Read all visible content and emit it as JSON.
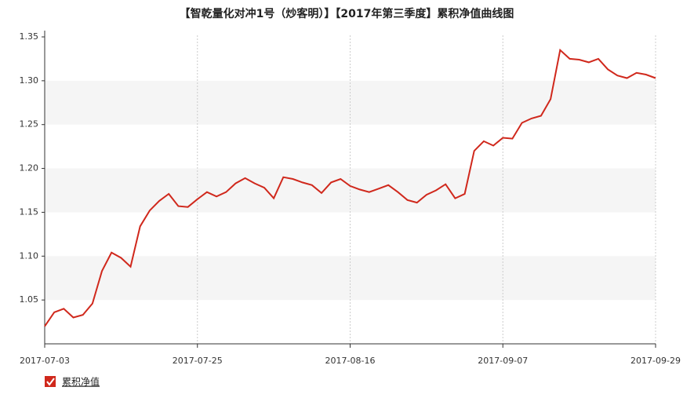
{
  "chart_data": {
    "type": "line",
    "title": "【智乾量化对冲1号（炒客明）】【2017年第三季度】累积净值曲线图",
    "categories": [
      "2017-07-03",
      null,
      null,
      null,
      null,
      null,
      null,
      null,
      null,
      null,
      null,
      null,
      null,
      null,
      null,
      null,
      "2017-07-25",
      null,
      null,
      null,
      null,
      null,
      null,
      null,
      null,
      null,
      null,
      null,
      null,
      null,
      null,
      null,
      "2017-08-16",
      null,
      null,
      null,
      null,
      null,
      null,
      null,
      null,
      null,
      null,
      null,
      null,
      null,
      null,
      null,
      "2017-09-07",
      null,
      null,
      null,
      null,
      null,
      null,
      null,
      null,
      null,
      null,
      null,
      null,
      null,
      null,
      null,
      "2017-09-29"
    ],
    "series": [
      {
        "name": "累积净值",
        "color": "#d0281c",
        "values": [
          1.02,
          1.036,
          1.04,
          1.03,
          1.033,
          1.046,
          1.083,
          1.104,
          1.098,
          1.088,
          1.134,
          1.152,
          1.163,
          1.171,
          1.157,
          1.156,
          1.165,
          1.173,
          1.168,
          1.173,
          1.183,
          1.189,
          1.183,
          1.178,
          1.166,
          1.19,
          1.188,
          1.184,
          1.181,
          1.172,
          1.184,
          1.188,
          1.18,
          1.176,
          1.173,
          1.177,
          1.181,
          1.173,
          1.164,
          1.161,
          1.17,
          1.175,
          1.182,
          1.166,
          1.171,
          1.22,
          1.231,
          1.226,
          1.235,
          1.234,
          1.252,
          1.257,
          1.26,
          1.279,
          1.335,
          1.325,
          1.324,
          1.321,
          1.325,
          1.313,
          1.306,
          1.303,
          1.309,
          1.307,
          1.303
        ]
      }
    ],
    "ylim": [
      1.0,
      1.35
    ],
    "yticks": [
      1.05,
      {
        "value": 1.1,
        "label": "1.10"
      },
      1.15,
      {
        "value": 1.2,
        "label": "1.20"
      },
      1.25,
      {
        "value": 1.3,
        "label": "1.30"
      },
      1.35
    ],
    "grid": true
  }
}
